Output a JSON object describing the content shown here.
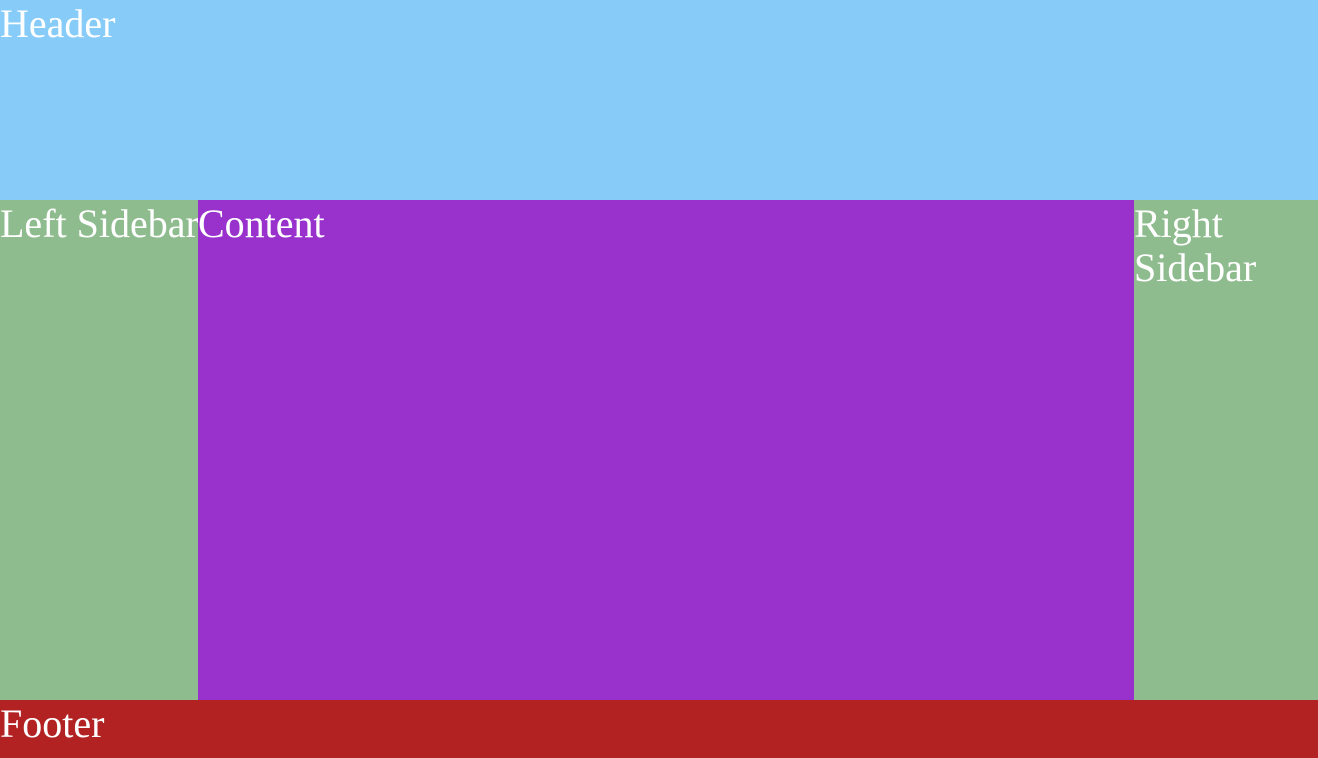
{
  "header": {
    "label": "Header"
  },
  "left_sidebar": {
    "label": "Left Sidebar"
  },
  "content": {
    "label": "Content"
  },
  "right_sidebar": {
    "label": "Right Sidebar"
  },
  "footer": {
    "label": "Footer"
  },
  "colors": {
    "header": "#87cbf8",
    "left_sidebar": "#8fbc8f",
    "content": "#9932cc",
    "right_sidebar": "#8fbc8f",
    "footer": "#b22222",
    "text": "#ffffff"
  }
}
